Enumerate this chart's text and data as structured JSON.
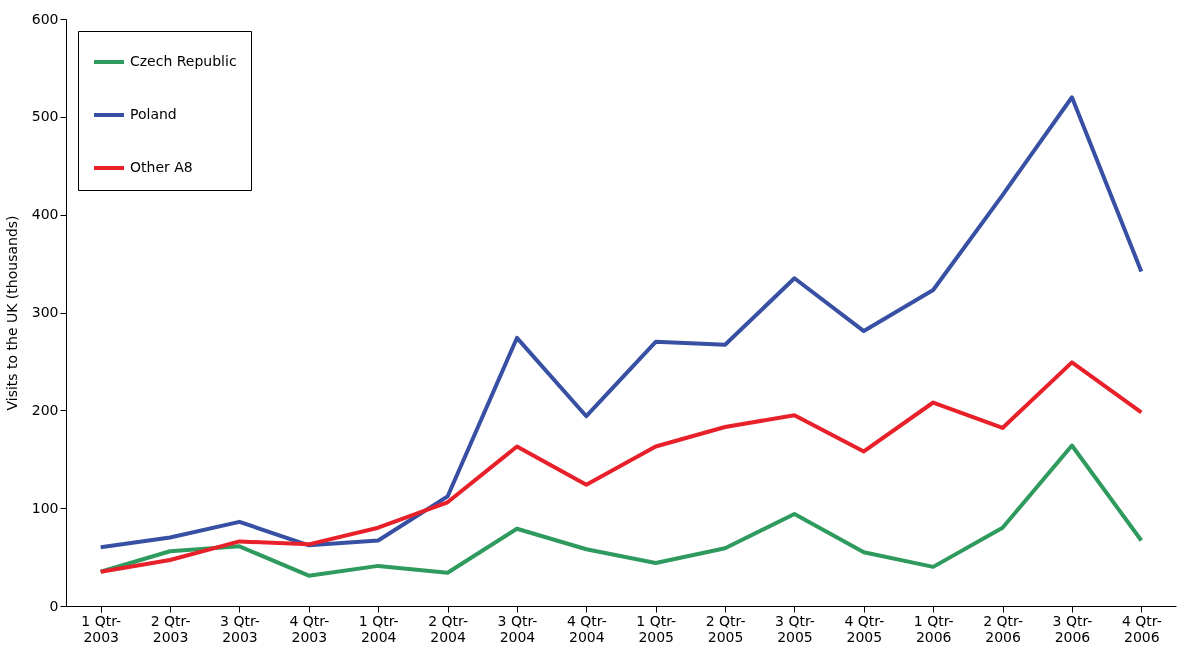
{
  "chart_data": {
    "type": "line",
    "ylabel": "Visits to the UK (thousands)",
    "categories": [
      "1 Qtr-2003",
      "2 Qtr-2003",
      "3 Qtr-2003",
      "4 Qtr-2003",
      "1 Qtr-2004",
      "2 Qtr-2004",
      "3 Qtr-2004",
      "4 Qtr-2004",
      "1 Qtr-2005",
      "2 Qtr-2005",
      "3 Qtr-2005",
      "4 Qtr-2005",
      "1 Qtr-2006",
      "2 Qtr-2006",
      "3 Qtr-2006",
      "4 Qtr-2006"
    ],
    "series": [
      {
        "name": "Czech Republic",
        "color": "#2e9a5e",
        "values": [
          35,
          56,
          61,
          31,
          41,
          34,
          79,
          58,
          44,
          59,
          94,
          55,
          40,
          80,
          164,
          67
        ]
      },
      {
        "name": "Poland",
        "color": "#3850a3",
        "values": [
          60,
          70,
          86,
          62,
          67,
          112,
          274,
          194,
          270,
          267,
          335,
          281,
          323,
          420,
          520,
          342
        ]
      },
      {
        "name": "Other A8",
        "color": "#e8202a",
        "values": [
          35,
          47,
          66,
          63,
          80,
          106,
          163,
          124,
          163,
          183,
          195,
          158,
          208,
          182,
          249,
          198
        ]
      }
    ],
    "ylim": [
      0,
      600
    ],
    "yticks": [
      0,
      100,
      200,
      300,
      400,
      500,
      600
    ],
    "grid": false,
    "legend": "top left",
    "marker": "none",
    "line_style": "solid"
  }
}
